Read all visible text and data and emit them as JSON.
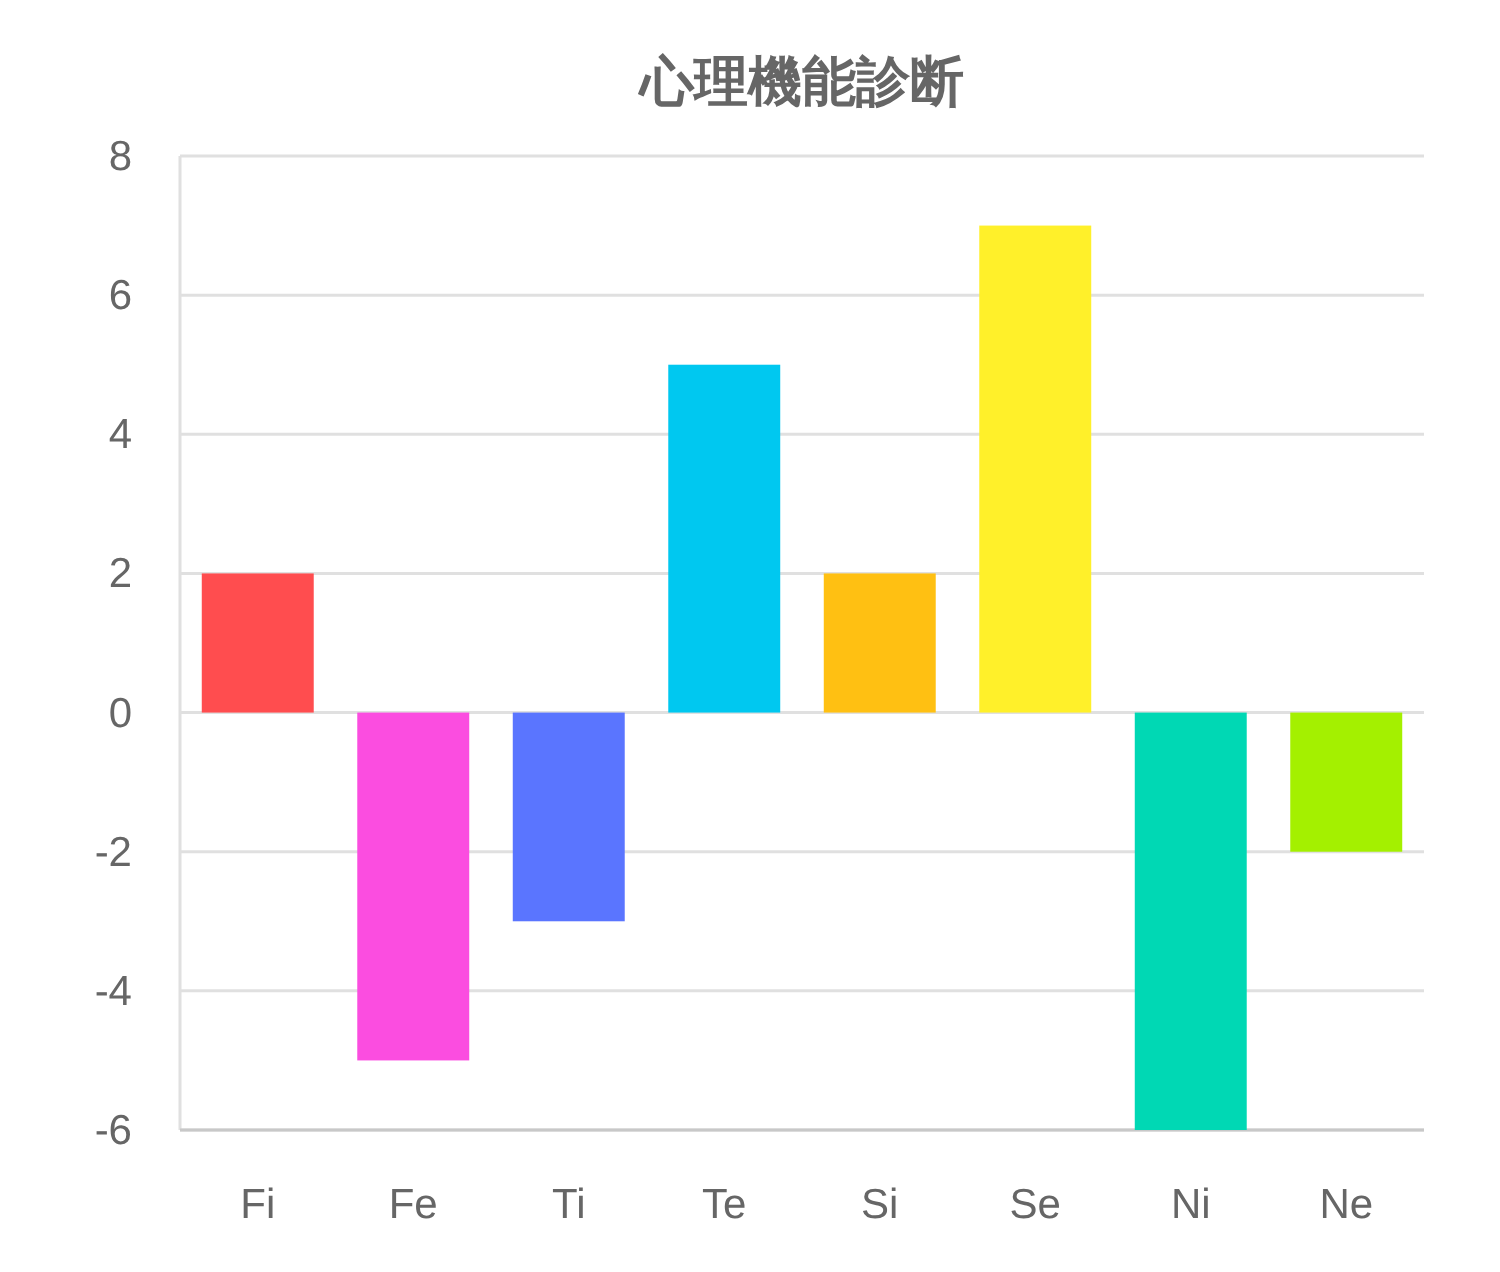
{
  "chart_data": {
    "type": "bar",
    "title": "心理機能診断",
    "categories": [
      "Fi",
      "Fe",
      "Ti",
      "Te",
      "Si",
      "Se",
      "Ni",
      "Ne"
    ],
    "values": [
      2,
      -5,
      -3,
      5,
      2,
      7,
      -6,
      -2
    ],
    "colors": [
      "#ff4d4f",
      "#fb4de0",
      "#5a75ff",
      "#00c8f0",
      "#ffc012",
      "#fff02a",
      "#00d8b4",
      "#a4f000"
    ],
    "ylim": [
      -6,
      8
    ],
    "yticks": [
      -6,
      -4,
      -2,
      0,
      2,
      4,
      6,
      8
    ],
    "grid": "y"
  }
}
